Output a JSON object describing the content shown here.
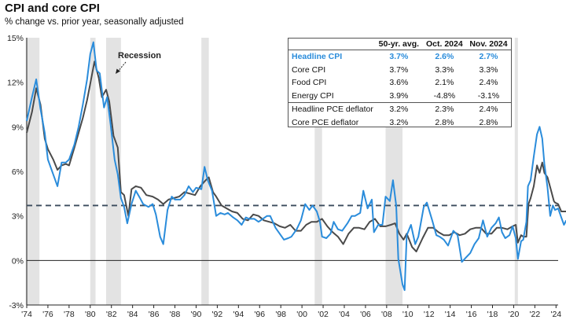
{
  "title": "CPI and core CPI",
  "subtitle": "% change vs. prior year, seasonally adjusted",
  "recession_label": "Recession",
  "colors": {
    "headline": "#2a8cdb",
    "core": "#4a4a4a",
    "recession": "#e3e3e3",
    "dashed": "#3b4b5c"
  },
  "table": {
    "headers": [
      "",
      "50-yr. avg.",
      "Oct. 2024",
      "Nov. 2024"
    ],
    "rows": [
      {
        "label": "Headline CPI",
        "values": [
          "3.7%",
          "2.6%",
          "2.7%"
        ]
      },
      {
        "label": "Core CPI",
        "values": [
          "3.7%",
          "3.3%",
          "3.3%"
        ]
      },
      {
        "label": "Food CPI",
        "values": [
          "3.6%",
          "2.1%",
          "2.4%"
        ]
      },
      {
        "label": "Energy CPI",
        "values": [
          "3.9%",
          "-4.8%",
          "-3.1%"
        ]
      },
      {
        "label": "Headline PCE deflator",
        "values": [
          "3.2%",
          "2.3%",
          "2.4%"
        ]
      },
      {
        "label": "Core PCE deflator",
        "values": [
          "3.2%",
          "2.8%",
          "2.8%"
        ]
      }
    ]
  },
  "chart_data": {
    "type": "line",
    "title": "CPI and core CPI",
    "subtitle": "% change vs. prior year, seasonally adjusted",
    "ylim": [
      -3,
      15
    ],
    "xlim": [
      1974,
      2024.2
    ],
    "y_ticks": [
      "-3%",
      "0%",
      "3%",
      "6%",
      "9%",
      "12%",
      "15%"
    ],
    "x_ticks": [
      "'74",
      "'76",
      "'78",
      "'80",
      "'82",
      "'84",
      "'86",
      "'88",
      "'90",
      "'92",
      "'94",
      "'96",
      "'98",
      "'00",
      "'02",
      "'04",
      "'06",
      "'08",
      "'10",
      "'12",
      "'14",
      "'16",
      "'18",
      "'20",
      "'22",
      "'24"
    ],
    "average_line": 3.7,
    "recessions": [
      [
        1973.9,
        1975.2
      ],
      [
        1980.0,
        1980.5
      ],
      [
        1981.5,
        1982.9
      ],
      [
        1990.5,
        1991.2
      ],
      [
        2001.2,
        2001.9
      ],
      [
        2007.9,
        2009.5
      ],
      [
        2020.1,
        2020.4
      ]
    ],
    "series": [
      {
        "name": "Headline CPI",
        "color": "#2a8cdb",
        "points": [
          [
            1974.0,
            9.4
          ],
          [
            1974.5,
            11.0
          ],
          [
            1974.9,
            12.2
          ],
          [
            1975.3,
            10.2
          ],
          [
            1975.7,
            8.6
          ],
          [
            1976.0,
            6.8
          ],
          [
            1976.5,
            5.8
          ],
          [
            1976.9,
            5.0
          ],
          [
            1977.3,
            6.6
          ],
          [
            1977.7,
            6.6
          ],
          [
            1978.0,
            6.8
          ],
          [
            1978.5,
            7.8
          ],
          [
            1978.9,
            9.0
          ],
          [
            1979.3,
            10.5
          ],
          [
            1979.7,
            12.2
          ],
          [
            1980.0,
            13.9
          ],
          [
            1980.3,
            14.7
          ],
          [
            1980.6,
            12.8
          ],
          [
            1980.9,
            12.6
          ],
          [
            1981.3,
            10.3
          ],
          [
            1981.6,
            11.0
          ],
          [
            1981.9,
            9.3
          ],
          [
            1982.3,
            6.8
          ],
          [
            1982.6,
            5.8
          ],
          [
            1982.9,
            4.2
          ],
          [
            1983.2,
            3.6
          ],
          [
            1983.5,
            2.5
          ],
          [
            1983.9,
            3.8
          ],
          [
            1984.3,
            4.7
          ],
          [
            1984.7,
            4.2
          ],
          [
            1985.0,
            3.8
          ],
          [
            1985.5,
            3.6
          ],
          [
            1985.9,
            3.8
          ],
          [
            1986.2,
            3.1
          ],
          [
            1986.6,
            1.6
          ],
          [
            1986.9,
            1.1
          ],
          [
            1987.3,
            3.4
          ],
          [
            1987.7,
            4.3
          ],
          [
            1988.0,
            4.1
          ],
          [
            1988.5,
            4.1
          ],
          [
            1988.9,
            4.4
          ],
          [
            1989.3,
            5.0
          ],
          [
            1989.7,
            4.6
          ],
          [
            1990.0,
            4.9
          ],
          [
            1990.5,
            4.8
          ],
          [
            1990.8,
            6.3
          ],
          [
            1991.1,
            5.4
          ],
          [
            1991.5,
            4.7
          ],
          [
            1991.9,
            3.0
          ],
          [
            1992.3,
            3.2
          ],
          [
            1992.7,
            3.1
          ],
          [
            1993.0,
            3.2
          ],
          [
            1993.5,
            2.9
          ],
          [
            1993.9,
            2.7
          ],
          [
            1994.3,
            2.4
          ],
          [
            1994.7,
            2.9
          ],
          [
            1995.0,
            2.8
          ],
          [
            1995.5,
            2.8
          ],
          [
            1995.9,
            2.6
          ],
          [
            1996.3,
            2.8
          ],
          [
            1996.7,
            3.0
          ],
          [
            1997.0,
            3.0
          ],
          [
            1997.5,
            2.2
          ],
          [
            1997.9,
            1.8
          ],
          [
            1998.3,
            1.4
          ],
          [
            1998.7,
            1.5
          ],
          [
            1999.0,
            1.6
          ],
          [
            1999.5,
            2.1
          ],
          [
            1999.9,
            2.7
          ],
          [
            2000.3,
            3.8
          ],
          [
            2000.7,
            3.4
          ],
          [
            2001.0,
            3.7
          ],
          [
            2001.4,
            3.3
          ],
          [
            2001.7,
            2.6
          ],
          [
            2001.9,
            1.6
          ],
          [
            2002.3,
            1.5
          ],
          [
            2002.7,
            1.8
          ],
          [
            2003.0,
            2.6
          ],
          [
            2003.4,
            2.1
          ],
          [
            2003.8,
            2.0
          ],
          [
            2004.3,
            2.5
          ],
          [
            2004.7,
            3.0
          ],
          [
            2005.0,
            3.0
          ],
          [
            2005.5,
            3.2
          ],
          [
            2005.8,
            4.7
          ],
          [
            2006.2,
            3.5
          ],
          [
            2006.6,
            4.1
          ],
          [
            2006.8,
            1.9
          ],
          [
            2007.2,
            2.4
          ],
          [
            2007.6,
            2.4
          ],
          [
            2007.9,
            4.3
          ],
          [
            2008.3,
            4.0
          ],
          [
            2008.6,
            5.4
          ],
          [
            2008.9,
            3.7
          ],
          [
            2009.1,
            0.1
          ],
          [
            2009.5,
            -1.6
          ],
          [
            2009.7,
            -2.0
          ],
          [
            2009.9,
            1.7
          ],
          [
            2010.3,
            2.4
          ],
          [
            2010.7,
            1.1
          ],
          [
            2011.0,
            1.6
          ],
          [
            2011.5,
            3.6
          ],
          [
            2011.8,
            3.9
          ],
          [
            2012.3,
            2.7
          ],
          [
            2012.7,
            1.7
          ],
          [
            2013.0,
            1.6
          ],
          [
            2013.4,
            1.4
          ],
          [
            2013.8,
            1.0
          ],
          [
            2014.3,
            2.0
          ],
          [
            2014.7,
            1.7
          ],
          [
            2014.9,
            0.8
          ],
          [
            2015.1,
            -0.1
          ],
          [
            2015.5,
            0.2
          ],
          [
            2015.9,
            0.5
          ],
          [
            2016.3,
            1.1
          ],
          [
            2016.7,
            1.5
          ],
          [
            2017.1,
            2.7
          ],
          [
            2017.5,
            1.6
          ],
          [
            2017.9,
            2.2
          ],
          [
            2018.3,
            2.5
          ],
          [
            2018.6,
            2.9
          ],
          [
            2018.9,
            1.9
          ],
          [
            2019.2,
            1.5
          ],
          [
            2019.6,
            1.7
          ],
          [
            2019.9,
            2.3
          ],
          [
            2020.2,
            1.5
          ],
          [
            2020.4,
            0.1
          ],
          [
            2020.7,
            1.3
          ],
          [
            2020.9,
            1.4
          ],
          [
            2021.2,
            2.6
          ],
          [
            2021.35,
            5.0
          ],
          [
            2021.6,
            5.4
          ],
          [
            2021.9,
            7.0
          ],
          [
            2022.2,
            8.5
          ],
          [
            2022.45,
            9.0
          ],
          [
            2022.7,
            8.2
          ],
          [
            2022.9,
            6.5
          ],
          [
            2023.2,
            4.9
          ],
          [
            2023.45,
            3.0
          ],
          [
            2023.7,
            3.7
          ],
          [
            2023.9,
            3.4
          ],
          [
            2024.2,
            3.5
          ],
          [
            2024.5,
            2.9
          ],
          [
            2024.75,
            2.4
          ],
          [
            2024.9,
            2.6
          ],
          [
            2024.95,
            2.7
          ]
        ]
      },
      {
        "name": "Core CPI",
        "color": "#4a4a4a",
        "points": [
          [
            1974.0,
            8.6
          ],
          [
            1974.5,
            10.0
          ],
          [
            1974.9,
            11.6
          ],
          [
            1975.3,
            10.5
          ],
          [
            1975.7,
            8.2
          ],
          [
            1976.0,
            7.5
          ],
          [
            1976.5,
            6.8
          ],
          [
            1976.9,
            6.1
          ],
          [
            1977.3,
            6.4
          ],
          [
            1977.7,
            6.5
          ],
          [
            1978.0,
            6.4
          ],
          [
            1978.5,
            7.6
          ],
          [
            1978.9,
            8.6
          ],
          [
            1979.3,
            9.6
          ],
          [
            1979.7,
            10.8
          ],
          [
            1980.0,
            11.9
          ],
          [
            1980.4,
            13.4
          ],
          [
            1980.8,
            12.3
          ],
          [
            1981.1,
            11.0
          ],
          [
            1981.5,
            11.5
          ],
          [
            1981.8,
            10.7
          ],
          [
            1982.2,
            8.4
          ],
          [
            1982.6,
            7.6
          ],
          [
            1982.9,
            4.6
          ],
          [
            1983.2,
            4.4
          ],
          [
            1983.6,
            3.0
          ],
          [
            1983.9,
            4.8
          ],
          [
            1984.3,
            5.0
          ],
          [
            1984.8,
            4.9
          ],
          [
            1985.3,
            4.4
          ],
          [
            1985.9,
            4.3
          ],
          [
            1986.4,
            4.1
          ],
          [
            1986.9,
            3.8
          ],
          [
            1987.4,
            4.1
          ],
          [
            1987.9,
            4.2
          ],
          [
            1988.4,
            4.3
          ],
          [
            1988.9,
            4.6
          ],
          [
            1989.4,
            4.5
          ],
          [
            1989.9,
            4.4
          ],
          [
            1990.4,
            5.0
          ],
          [
            1990.9,
            5.4
          ],
          [
            1991.2,
            5.6
          ],
          [
            1991.6,
            4.6
          ],
          [
            1991.9,
            4.3
          ],
          [
            1992.4,
            3.7
          ],
          [
            1992.9,
            3.5
          ],
          [
            1993.4,
            3.3
          ],
          [
            1993.9,
            3.2
          ],
          [
            1994.4,
            2.8
          ],
          [
            1994.9,
            2.7
          ],
          [
            1995.4,
            3.1
          ],
          [
            1995.9,
            3.0
          ],
          [
            1996.4,
            2.7
          ],
          [
            1996.9,
            2.6
          ],
          [
            1997.4,
            2.5
          ],
          [
            1997.9,
            2.3
          ],
          [
            1998.4,
            2.2
          ],
          [
            1998.9,
            2.4
          ],
          [
            1999.4,
            2.0
          ],
          [
            1999.9,
            2.0
          ],
          [
            2000.4,
            2.4
          ],
          [
            2000.9,
            2.6
          ],
          [
            2001.4,
            2.6
          ],
          [
            2001.9,
            2.8
          ],
          [
            2002.4,
            2.3
          ],
          [
            2002.9,
            1.9
          ],
          [
            2003.4,
            1.6
          ],
          [
            2003.9,
            1.1
          ],
          [
            2004.4,
            1.8
          ],
          [
            2004.9,
            2.2
          ],
          [
            2005.4,
            2.2
          ],
          [
            2005.9,
            2.1
          ],
          [
            2006.4,
            2.6
          ],
          [
            2006.9,
            2.8
          ],
          [
            2007.4,
            2.3
          ],
          [
            2007.9,
            2.3
          ],
          [
            2008.4,
            2.4
          ],
          [
            2008.8,
            2.5
          ],
          [
            2009.2,
            1.8
          ],
          [
            2009.6,
            1.4
          ],
          [
            2009.9,
            1.8
          ],
          [
            2010.4,
            0.9
          ],
          [
            2010.8,
            0.6
          ],
          [
            2011.4,
            1.5
          ],
          [
            2011.9,
            2.2
          ],
          [
            2012.4,
            2.2
          ],
          [
            2012.9,
            1.9
          ],
          [
            2013.4,
            1.7
          ],
          [
            2013.9,
            1.7
          ],
          [
            2014.4,
            1.9
          ],
          [
            2014.9,
            1.7
          ],
          [
            2015.4,
            1.8
          ],
          [
            2015.9,
            2.1
          ],
          [
            2016.4,
            2.2
          ],
          [
            2016.9,
            2.2
          ],
          [
            2017.4,
            1.8
          ],
          [
            2017.9,
            1.8
          ],
          [
            2018.4,
            2.2
          ],
          [
            2018.9,
            2.2
          ],
          [
            2019.4,
            2.1
          ],
          [
            2019.9,
            2.3
          ],
          [
            2020.2,
            2.4
          ],
          [
            2020.4,
            1.2
          ],
          [
            2020.7,
            1.7
          ],
          [
            2020.9,
            1.6
          ],
          [
            2021.2,
            1.6
          ],
          [
            2021.4,
            3.8
          ],
          [
            2021.6,
            4.2
          ],
          [
            2021.9,
            5.0
          ],
          [
            2022.2,
            6.4
          ],
          [
            2022.45,
            5.9
          ],
          [
            2022.7,
            6.6
          ],
          [
            2022.9,
            5.9
          ],
          [
            2023.2,
            5.6
          ],
          [
            2023.5,
            4.8
          ],
          [
            2023.8,
            4.0
          ],
          [
            2023.9,
            3.9
          ],
          [
            2024.2,
            3.8
          ],
          [
            2024.5,
            3.3
          ],
          [
            2024.75,
            3.3
          ],
          [
            2024.95,
            3.3
          ]
        ]
      }
    ]
  }
}
